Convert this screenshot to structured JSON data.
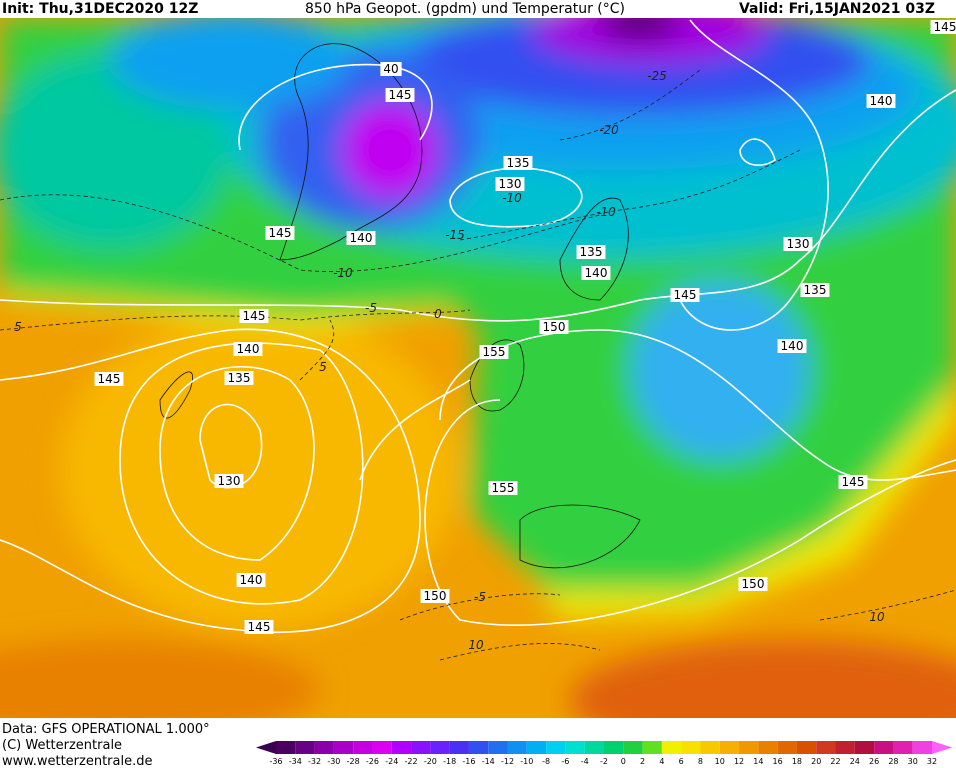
{
  "header": {
    "init": "Init: Thu,31DEC2020 12Z",
    "title": "850 hPa Geopot. (gpdm) und Temperatur (°C)",
    "valid": "Valid: Fri,15JAN2021 03Z"
  },
  "map": {
    "geopotential_labels": [
      40,
      145,
      135,
      130,
      145,
      140,
      135,
      140,
      145,
      135,
      130,
      140,
      145,
      150,
      140,
      155,
      140,
      135,
      145,
      130,
      155,
      145,
      140,
      150,
      145,
      150,
      145
    ],
    "temperature_labels": [
      -25,
      -20,
      -10,
      -10,
      -15,
      -10,
      -5,
      0,
      5,
      5,
      -5,
      10,
      10
    ]
  },
  "colorbar": {
    "levels": [
      -36,
      -34,
      -32,
      -30,
      -28,
      -26,
      -24,
      -22,
      -20,
      -18,
      -16,
      -14,
      -12,
      -10,
      -8,
      -6,
      -4,
      -2,
      0,
      2,
      4,
      6,
      8,
      10,
      12,
      14,
      16,
      18,
      20,
      22,
      24,
      26,
      28,
      30,
      32
    ],
    "colors": [
      "#3a0050",
      "#4b0060",
      "#6a0085",
      "#8a00a8",
      "#a800c8",
      "#c400e0",
      "#dc00f0",
      "#b000ff",
      "#8a10ff",
      "#6a20ff",
      "#4a30f0",
      "#3050f0",
      "#2070f0",
      "#1090f0",
      "#00b0f0",
      "#00d0f0",
      "#00e0d0",
      "#00d8a0",
      "#00d070",
      "#20d040",
      "#60e020",
      "#f0f000",
      "#f8e000",
      "#f8c800",
      "#f8b000",
      "#f09800",
      "#e88000",
      "#e06800",
      "#d85000",
      "#d03820",
      "#c02030",
      "#b01040",
      "#c81080",
      "#e020b0",
      "#f040e0",
      "#ff60ff"
    ]
  },
  "footer": {
    "data": "Data: GFS OPERATIONAL 1.000°",
    "copyright": "(C) Wetterzentrale",
    "url": "www.wetterzentrale.de"
  }
}
